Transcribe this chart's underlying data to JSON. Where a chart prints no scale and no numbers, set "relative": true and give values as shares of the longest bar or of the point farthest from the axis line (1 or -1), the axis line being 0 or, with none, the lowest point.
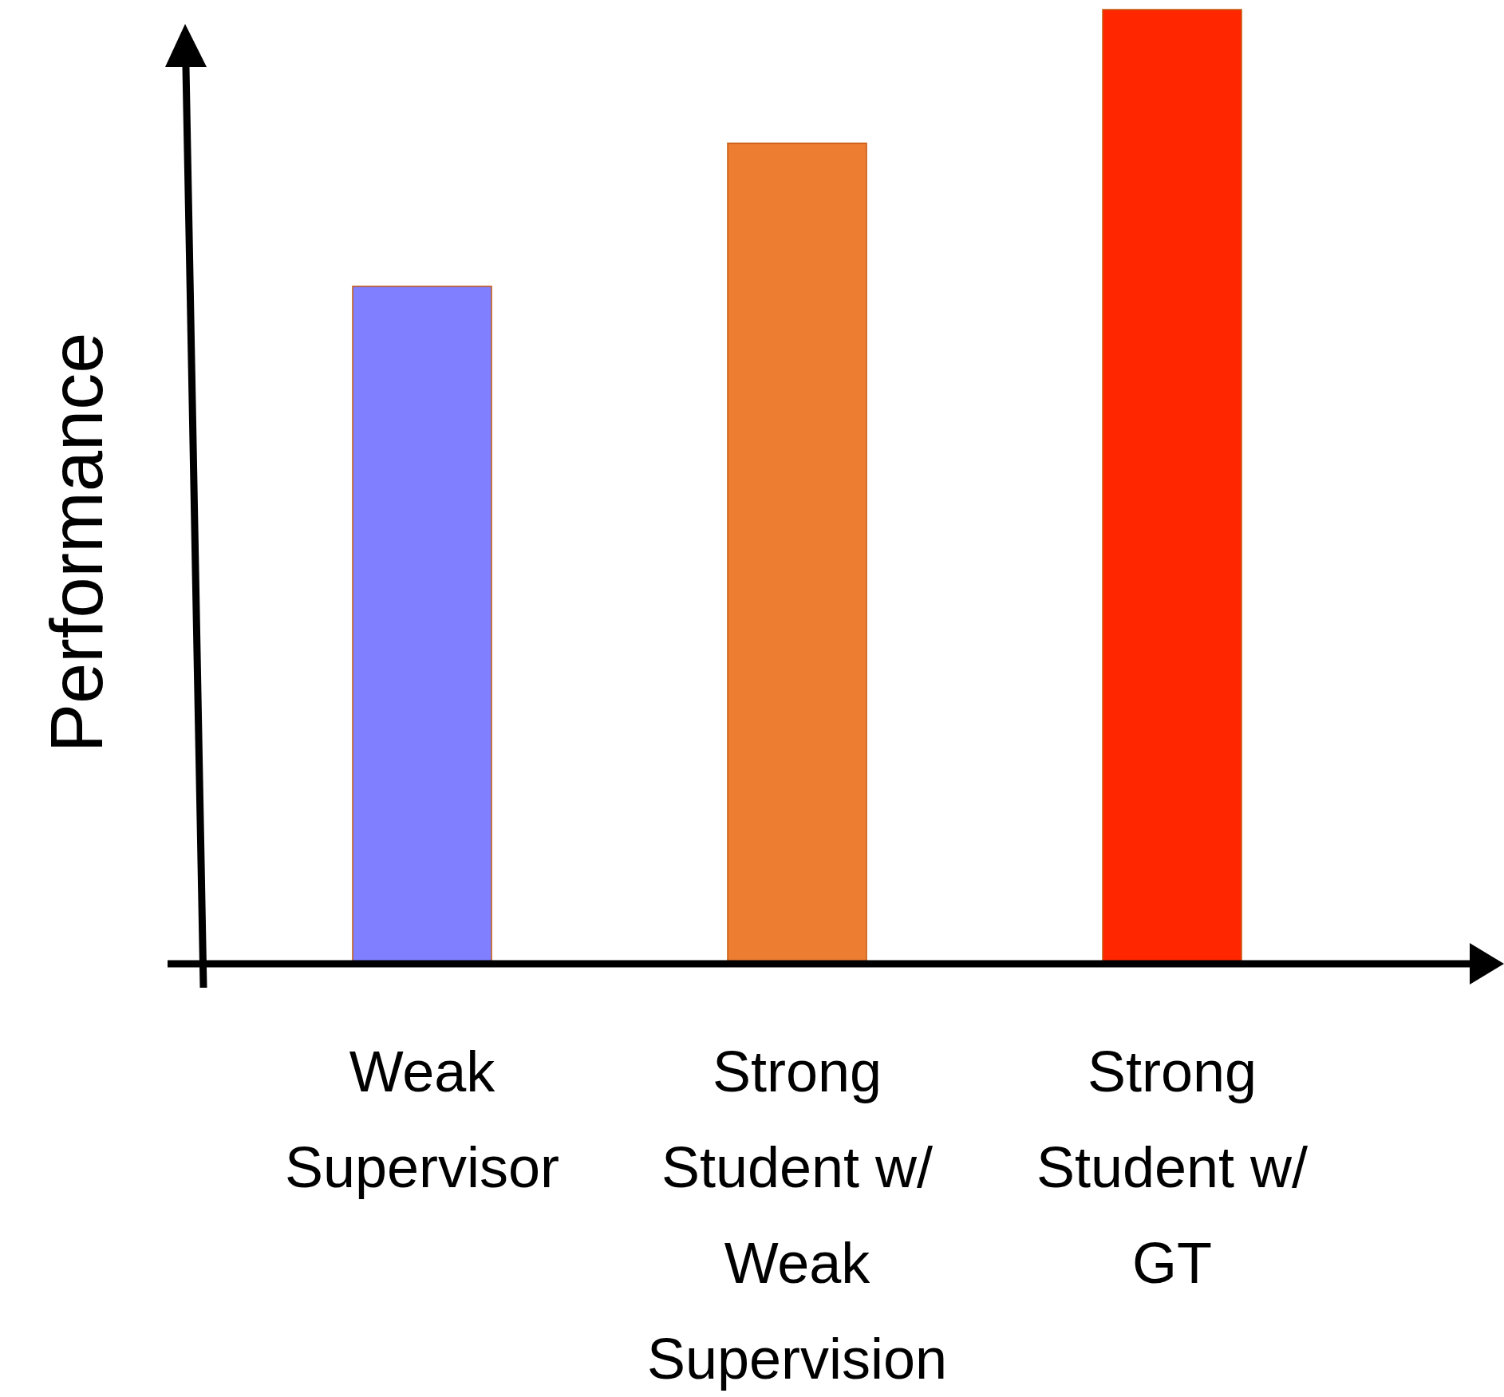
{
  "chart_data": {
    "type": "bar",
    "relative": true,
    "ylabel": "Performance",
    "categories": [
      "Weak Supervisor",
      "Strong Student w/ Weak Supervision",
      "Strong Student w/ GT"
    ],
    "values": [
      0.71,
      0.86,
      1
    ],
    "colors": [
      "#7f7fff",
      "#ed7d31",
      "#ff2600"
    ]
  }
}
